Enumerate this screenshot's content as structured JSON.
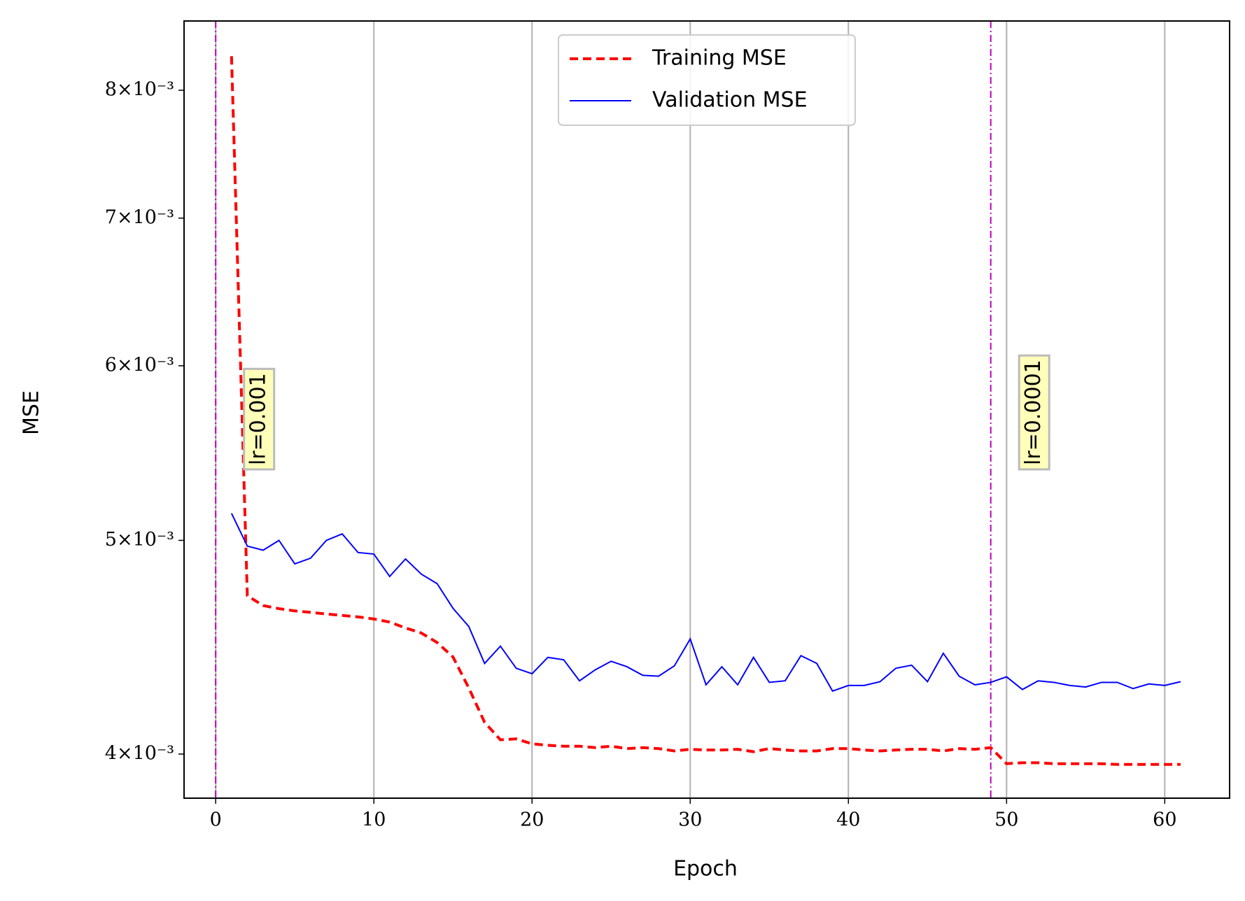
{
  "chart_data": {
    "type": "line",
    "xlabel": "Epoch",
    "ylabel": "MSE",
    "x": [
      1,
      2,
      3,
      4,
      5,
      6,
      7,
      8,
      9,
      10,
      11,
      12,
      13,
      14,
      15,
      16,
      17,
      18,
      19,
      20,
      21,
      22,
      23,
      24,
      25,
      26,
      27,
      28,
      29,
      30,
      31,
      32,
      33,
      34,
      35,
      36,
      37,
      38,
      39,
      40,
      41,
      42,
      43,
      44,
      45,
      46,
      47,
      48,
      49,
      50,
      51,
      52,
      53,
      54,
      55,
      56,
      57,
      58,
      59,
      60,
      61
    ],
    "series": [
      {
        "name": "Training MSE",
        "color": "#ff0000",
        "style": "dashed",
        "values": [
          0.00829,
          0.004719,
          0.004671,
          0.004656,
          0.004645,
          0.004638,
          0.00463,
          0.004623,
          0.004616,
          0.004606,
          0.004591,
          0.004563,
          0.004539,
          0.004494,
          0.004427,
          0.004286,
          0.004135,
          0.00406,
          0.004064,
          0.004043,
          0.004037,
          0.004033,
          0.004033,
          0.004027,
          0.004033,
          0.004023,
          0.004027,
          0.004023,
          0.004013,
          0.00402,
          0.004017,
          0.004017,
          0.00402,
          0.00401,
          0.004023,
          0.004017,
          0.004013,
          0.004013,
          0.004023,
          0.004023,
          0.004017,
          0.004013,
          0.004017,
          0.00402,
          0.00402,
          0.004013,
          0.004023,
          0.00402,
          0.004027,
          0.00396,
          0.003964,
          0.003964,
          0.00396,
          0.00396,
          0.00396,
          0.00396,
          0.003957,
          0.003957,
          0.003957,
          0.003957,
          0.003957
        ]
      },
      {
        "name": "Validation MSE",
        "color": "#0000ff",
        "style": "solid",
        "values": [
          0.005143,
          0.00497,
          0.004949,
          0.005,
          0.004879,
          0.004908,
          0.005,
          0.005034,
          0.004937,
          0.004929,
          0.004815,
          0.004904,
          0.004827,
          0.004779,
          0.004658,
          0.00457,
          0.004397,
          0.004477,
          0.004375,
          0.00435,
          0.004425,
          0.004414,
          0.004318,
          0.004368,
          0.004407,
          0.004382,
          0.004343,
          0.004339,
          0.004386,
          0.004511,
          0.0043,
          0.004382,
          0.0043,
          0.004425,
          0.004311,
          0.004318,
          0.004433,
          0.004397,
          0.004272,
          0.004297,
          0.004297,
          0.004314,
          0.004375,
          0.004389,
          0.004314,
          0.004444,
          0.004339,
          0.0043,
          0.004311,
          0.004336,
          0.004279,
          0.004318,
          0.004311,
          0.004297,
          0.00429,
          0.004311,
          0.004311,
          0.004283,
          0.004304,
          0.004297,
          0.004314
        ]
      }
    ],
    "vlines": [
      {
        "x": 0,
        "label": "lr=0.001",
        "color": "#bf00bf"
      },
      {
        "x": 49,
        "label": "lr=0.0001",
        "color": "#bf00bf"
      }
    ],
    "xlim": [
      -2,
      64.1
    ],
    "xticks": [
      0,
      10,
      20,
      30,
      40,
      50,
      60
    ],
    "ylim": [
      0.00382,
      0.0086
    ],
    "ylog": true,
    "yticks": [
      {
        "value": 0.004,
        "label": "4×10⁻³"
      },
      {
        "value": 0.005,
        "label": "5×10⁻³"
      },
      {
        "value": 0.006,
        "label": "6×10⁻³"
      },
      {
        "value": 0.007,
        "label": "7×10⁻³"
      },
      {
        "value": 0.008,
        "label": "8×10⁻³"
      }
    ],
    "grid": "x",
    "legend": "upper center"
  }
}
